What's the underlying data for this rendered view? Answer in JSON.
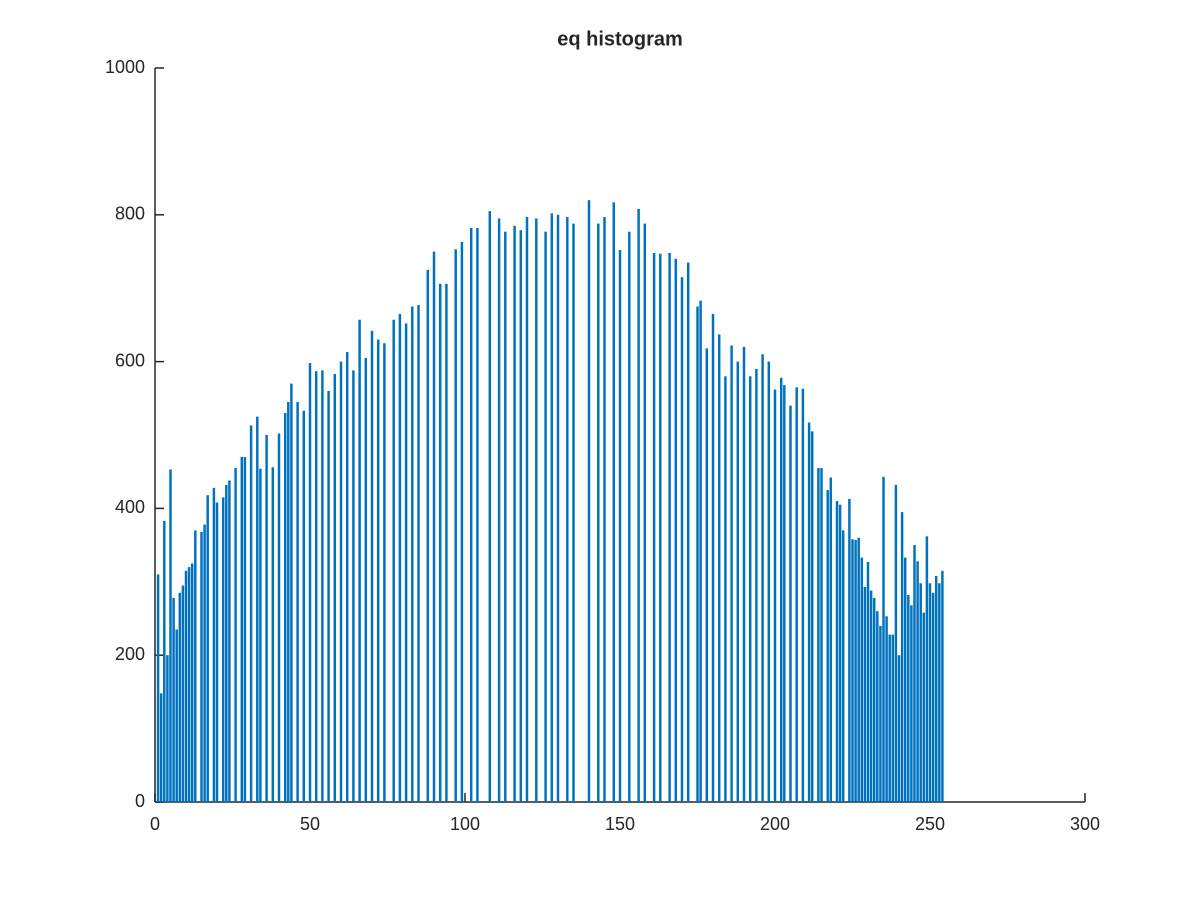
{
  "chart_data": {
    "type": "bar",
    "title": "eq histogram",
    "color": "#0072bd",
    "x": [
      1,
      2,
      3,
      4,
      5,
      6,
      7,
      8,
      9,
      10,
      11,
      12,
      13,
      15,
      16,
      17,
      19,
      20,
      22,
      23,
      24,
      26,
      28,
      29,
      31,
      33,
      34,
      36,
      38,
      40,
      42,
      43,
      44,
      46,
      48,
      50,
      52,
      54,
      56,
      58,
      60,
      62,
      64,
      66,
      68,
      70,
      72,
      74,
      77,
      79,
      81,
      83,
      85,
      88,
      90,
      92,
      94,
      97,
      99,
      102,
      104,
      108,
      111,
      113,
      116,
      118,
      120,
      123,
      126,
      128,
      130,
      133,
      135,
      140,
      143,
      145,
      148,
      150,
      153,
      156,
      158,
      161,
      163,
      166,
      168,
      170,
      172,
      175,
      176,
      178,
      180,
      182,
      184,
      186,
      188,
      190,
      192,
      194,
      196,
      198,
      200,
      202,
      203,
      205,
      207,
      209,
      211,
      212,
      214,
      215,
      217,
      218,
      220,
      221,
      222,
      224,
      225,
      226,
      227,
      228,
      229,
      230,
      231,
      232,
      233,
      234,
      235,
      236,
      237,
      238,
      239,
      240,
      241,
      242,
      243,
      244,
      245,
      246,
      247,
      248,
      249,
      250,
      251,
      252,
      253,
      254
    ],
    "values": [
      310,
      148,
      383,
      200,
      453,
      278,
      235,
      285,
      295,
      315,
      320,
      325,
      370,
      368,
      378,
      418,
      428,
      408,
      415,
      432,
      438,
      455,
      470,
      470,
      513,
      525,
      454,
      500,
      456,
      502,
      530,
      545,
      570,
      545,
      533,
      598,
      587,
      588,
      560,
      583,
      600,
      613,
      588,
      657,
      605,
      642,
      630,
      625,
      657,
      665,
      652,
      675,
      677,
      725,
      750,
      706,
      706,
      753,
      763,
      782,
      782,
      805,
      795,
      777,
      785,
      779,
      797,
      795,
      777,
      802,
      800,
      797,
      788,
      820,
      788,
      797,
      817,
      752,
      777,
      808,
      788,
      748,
      747,
      748,
      740,
      715,
      735,
      675,
      683,
      618,
      665,
      637,
      580,
      622,
      600,
      620,
      580,
      590,
      610,
      600,
      562,
      578,
      568,
      540,
      565,
      563,
      517,
      505,
      455,
      455,
      425,
      442,
      410,
      405,
      370,
      413,
      358,
      357,
      360,
      333,
      293,
      327,
      288,
      278,
      260,
      240,
      443,
      253,
      228,
      228,
      432,
      200,
      395,
      333,
      282,
      268,
      350,
      328,
      298,
      258,
      362,
      298,
      285,
      308,
      298,
      315
    ],
    "xlim": [
      0,
      300
    ],
    "xticks": [
      0,
      50,
      100,
      150,
      200,
      250,
      300
    ],
    "ylim": [
      0,
      1000
    ],
    "yticks": [
      0,
      200,
      400,
      600,
      800,
      1000
    ]
  }
}
